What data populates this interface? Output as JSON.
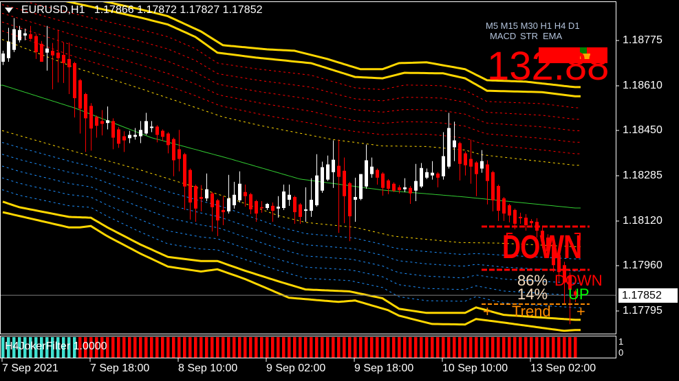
{
  "header": {
    "symbol_timeframe": "EURUSD,H1",
    "ohlc_text": "1.17866 1.17872 1.17827 1.17852"
  },
  "overlay": {
    "timeframes": "M5 M15 M30 H1 H4 D1",
    "indicators": [
      "MACD",
      "STR",
      "EMA"
    ],
    "big_value": "132.88",
    "signal_big": "DOWN",
    "down_pct": "86%",
    "down_label": "DOWN",
    "up_pct": "14%",
    "up_label": "UP",
    "trend_left": "+",
    "trend_label": "Trend",
    "trend_right": "+",
    "colors": {
      "down": "#ff0000",
      "up": "#00ff00",
      "trend": "#ff8c00",
      "pct": "#f5dcc0"
    }
  },
  "price_axis": {
    "ticks": [
      "1.18775",
      "1.18610",
      "1.18450",
      "1.18285",
      "1.18120",
      "1.17960",
      "1.17795"
    ],
    "current_price": "1.17852"
  },
  "time_axis": {
    "labels": [
      "7 Sep 2021",
      "7 Sep 18:00",
      "8 Sep 10:00",
      "9 Sep 02:00",
      "9 Sep 18:00",
      "10 Sep 10:00",
      "13 Sep 02:00"
    ]
  },
  "subwindow": {
    "name_value": "H4JokerFilter 1.0000",
    "axis_max": "1",
    "axis_min": "0",
    "state_runs": [
      {
        "state": "up",
        "bars": 14
      },
      {
        "state": "down",
        "bars": 91
      }
    ],
    "colors": {
      "up": "#40e0d0",
      "down": "#ff0000"
    }
  },
  "chart_data": {
    "type": "candlestick",
    "symbol": "EURUSD",
    "timeframe": "H1",
    "ylim": [
      1.177,
      1.19
    ],
    "colors": {
      "bull": "#ffffff",
      "bear": "#ff0000",
      "ma": "#32cd32",
      "outer_bands": "#ffd700",
      "signal_bands": "#ffd700",
      "upper_levels": "#ff0000",
      "lower_levels": "#1e90ff",
      "current_price_line": "#808080"
    },
    "candles_ohlc": [
      [
        1.18698,
        1.18738,
        1.18686,
        1.18728
      ],
      [
        1.18711,
        1.18821,
        1.18698,
        1.18771
      ],
      [
        1.18741,
        1.18856,
        1.18733,
        1.18816
      ],
      [
        1.18776,
        1.18828,
        1.18768,
        1.18813
      ],
      [
        1.18793,
        1.18818,
        1.18776,
        1.18801
      ],
      [
        1.18798,
        1.18828,
        1.18778,
        1.18781
      ],
      [
        1.18791,
        1.18798,
        1.18708,
        1.18733
      ],
      [
        1.18763,
        1.18773,
        1.18698,
        1.18698
      ],
      [
        1.18731,
        1.18828,
        1.18666,
        1.18746
      ],
      [
        1.18738,
        1.18766,
        1.18598,
        1.18721
      ],
      [
        1.18731,
        1.18811,
        1.18623,
        1.18711
      ],
      [
        1.18723,
        1.18768,
        1.18621,
        1.18693
      ],
      [
        1.18708,
        1.18768,
        1.18581,
        1.18678
      ],
      [
        1.18693,
        1.18698,
        1.18496,
        1.18566
      ],
      [
        1.18631,
        1.18636,
        1.18438,
        1.18528
      ],
      [
        1.18581,
        1.18586,
        1.18371,
        1.18493
      ],
      [
        1.18538,
        1.18548,
        1.18376,
        1.18456
      ],
      [
        1.18498,
        1.18503,
        1.18423,
        1.18466
      ],
      [
        1.18483,
        1.18523,
        1.18431,
        1.18473
      ],
      [
        1.18476,
        1.18536,
        1.18453,
        1.18486
      ],
      [
        1.18483,
        1.18493,
        1.18381,
        1.18423
      ],
      [
        1.18453,
        1.18461,
        1.18386,
        1.18401
      ],
      [
        1.18428,
        1.18446,
        1.18371,
        1.18413
      ],
      [
        1.18421,
        1.18448,
        1.18403,
        1.18433
      ],
      [
        1.18426,
        1.18458,
        1.18416,
        1.18433
      ],
      [
        1.18428,
        1.18483,
        1.18403,
        1.18451
      ],
      [
        1.18438,
        1.18513,
        1.18433,
        1.18483
      ],
      [
        1.18458,
        1.18483,
        1.18443,
        1.18463
      ],
      [
        1.18463,
        1.18468,
        1.18406,
        1.18433
      ],
      [
        1.18448,
        1.18453,
        1.18411,
        1.18426
      ],
      [
        1.18438,
        1.18443,
        1.18366,
        1.18396
      ],
      [
        1.18418,
        1.18423,
        1.18283,
        1.18341
      ],
      [
        1.18381,
        1.18451,
        1.18301,
        1.18346
      ],
      [
        1.18363,
        1.18368,
        1.18161,
        1.18246
      ],
      [
        1.18306,
        1.18311,
        1.18126,
        1.18188
      ],
      [
        1.18248,
        1.18253,
        1.18118,
        1.18166
      ],
      [
        1.18208,
        1.18251,
        1.18156,
        1.18201
      ],
      [
        1.18203,
        1.18293,
        1.18193,
        1.18236
      ],
      [
        1.18221,
        1.18226,
        1.18083,
        1.18171
      ],
      [
        1.18196,
        1.18201,
        1.18066,
        1.18123
      ],
      [
        1.18161,
        1.18211,
        1.18106,
        1.18153
      ],
      [
        1.18156,
        1.18288,
        1.18148,
        1.18203
      ],
      [
        1.18178,
        1.18263,
        1.18166,
        1.18216
      ],
      [
        1.18196,
        1.18301,
        1.18188,
        1.18256
      ],
      [
        1.18226,
        1.18253,
        1.18173,
        1.18211
      ],
      [
        1.18218,
        1.18223,
        1.18146,
        1.18163
      ],
      [
        1.18193,
        1.18198,
        1.18118,
        1.18148
      ],
      [
        1.18171,
        1.18193,
        1.18151,
        1.18168
      ],
      [
        1.18168,
        1.18186,
        1.18161,
        1.18183
      ],
      [
        1.18176,
        1.18188,
        1.18118,
        1.18158
      ],
      [
        1.18166,
        1.18211,
        1.18133,
        1.18173
      ],
      [
        1.18168,
        1.18253,
        1.18161,
        1.18228
      ],
      [
        1.18198,
        1.18253,
        1.18176,
        1.18216
      ],
      [
        1.18208,
        1.18213,
        1.18111,
        1.18153
      ],
      [
        1.18181,
        1.18186,
        1.18111,
        1.18136
      ],
      [
        1.18158,
        1.18243,
        1.18118,
        1.18163
      ],
      [
        1.18158,
        1.18276,
        1.18136,
        1.18198
      ],
      [
        1.18178,
        1.18363,
        1.18173,
        1.18286
      ],
      [
        1.18231,
        1.18336,
        1.18223,
        1.18316
      ],
      [
        1.18271,
        1.18358,
        1.18266,
        1.18326
      ],
      [
        1.18298,
        1.18413,
        1.18241,
        1.18343
      ],
      [
        1.18321,
        1.18416,
        1.18078,
        1.18281
      ],
      [
        1.18303,
        1.18351,
        1.18113,
        1.18211
      ],
      [
        1.18258,
        1.18263,
        1.18048,
        1.18138
      ],
      [
        1.18198,
        1.18278,
        1.18118,
        1.18208
      ],
      [
        1.18201,
        1.18291,
        1.18196,
        1.18291
      ],
      [
        1.18246,
        1.18398,
        1.18238,
        1.18341
      ],
      [
        1.18291,
        1.18351,
        1.18278,
        1.18318
      ],
      [
        1.18306,
        1.18311,
        1.18253,
        1.18278
      ],
      [
        1.18293,
        1.18298,
        1.18213,
        1.18241
      ],
      [
        1.18268,
        1.18273,
        1.18218,
        1.18238
      ],
      [
        1.18256,
        1.18261,
        1.18226,
        1.18231
      ],
      [
        1.18243,
        1.18251,
        1.18221,
        1.18233
      ],
      [
        1.18236,
        1.18276,
        1.18226,
        1.18243
      ],
      [
        1.18241,
        1.18248,
        1.18183,
        1.18221
      ],
      [
        1.18231,
        1.18328,
        1.18193,
        1.18266
      ],
      [
        1.18246,
        1.18331,
        1.18241,
        1.18313
      ],
      [
        1.18278,
        1.18311,
        1.18273,
        1.18298
      ],
      [
        1.18286,
        1.18338,
        1.18271,
        1.18296
      ],
      [
        1.18293,
        1.18298,
        1.18243,
        1.18278
      ],
      [
        1.18283,
        1.18443,
        1.18271,
        1.18356
      ],
      [
        1.18318,
        1.18513,
        1.18311,
        1.18458
      ],
      [
        1.18388,
        1.18481,
        1.18338,
        1.18413
      ],
      [
        1.18403,
        1.18408,
        1.18268,
        1.18328
      ],
      [
        1.18366,
        1.18373,
        1.18286,
        1.18323
      ],
      [
        1.18346,
        1.18416,
        1.18256,
        1.18318
      ],
      [
        1.18333,
        1.18338,
        1.18211,
        1.18291
      ],
      [
        1.18311,
        1.18378,
        1.18296,
        1.18338
      ],
      [
        1.18326,
        1.18341,
        1.18181,
        1.18266
      ],
      [
        1.18298,
        1.18303,
        1.18156,
        1.18196
      ],
      [
        1.18248,
        1.18253,
        1.18121,
        1.18158
      ],
      [
        1.18203,
        1.18208,
        1.18121,
        1.18148
      ],
      [
        1.18178,
        1.18183,
        1.18116,
        1.18141
      ],
      [
        1.18161,
        1.18166,
        1.18091,
        1.18111
      ],
      [
        1.18136,
        1.18151,
        1.18111,
        1.18131
      ],
      [
        1.18133,
        1.18146,
        1.18086,
        1.18106
      ],
      [
        1.18121,
        1.18128,
        1.18098,
        1.18113
      ],
      [
        1.18118,
        1.18131,
        1.18061,
        1.18086
      ],
      [
        1.18086,
        1.18098,
        1.18023,
        1.18048
      ],
      [
        1.18061,
        1.18073,
        1.17998,
        1.18011
      ],
      [
        1.18036,
        1.18048,
        1.17936,
        1.17961
      ],
      [
        1.17998,
        1.18011,
        1.17898,
        1.17936
      ],
      [
        1.17961,
        1.17973,
        1.17823,
        1.17898
      ],
      [
        1.17922,
        1.17935,
        1.17747,
        1.17872
      ],
      [
        1.17866,
        1.17872,
        1.17827,
        1.17852
      ]
    ],
    "indicator_lines": {
      "ma": [
        [
          0,
          1.18613
        ],
        [
          13,
          1.18531
        ],
        [
          27,
          1.18423
        ],
        [
          41,
          1.18348
        ],
        [
          54,
          1.18273
        ],
        [
          69,
          1.18233
        ],
        [
          84,
          1.18208
        ],
        [
          104,
          1.18168
        ]
      ],
      "upper_outer": [
        [
          0,
          1.18998
        ],
        [
          25,
          1.18888
        ],
        [
          30,
          1.18863
        ],
        [
          36,
          1.18808
        ],
        [
          40,
          1.18758
        ],
        [
          48,
          1.18743
        ],
        [
          53,
          1.18738
        ],
        [
          59,
          1.18708
        ],
        [
          65,
          1.18671
        ],
        [
          69,
          1.18671
        ],
        [
          72,
          1.18693
        ],
        [
          77,
          1.18696
        ],
        [
          84,
          1.18671
        ],
        [
          88,
          1.18631
        ],
        [
          95,
          1.18626
        ],
        [
          104,
          1.18606
        ]
      ],
      "upper_inner": [
        [
          0,
          1.18968
        ],
        [
          25,
          1.18858
        ],
        [
          30,
          1.18833
        ],
        [
          35,
          1.18788
        ],
        [
          39,
          1.18731
        ],
        [
          46,
          1.18713
        ],
        [
          56,
          1.18693
        ],
        [
          64,
          1.18643
        ],
        [
          69,
          1.18638
        ],
        [
          73,
          1.18658
        ],
        [
          80,
          1.18656
        ],
        [
          84,
          1.18638
        ],
        [
          88,
          1.18593
        ],
        [
          98,
          1.18588
        ],
        [
          104,
          1.18573
        ]
      ],
      "upper_signal": [
        [
          0,
          1.18778
        ],
        [
          13,
          1.18678
        ],
        [
          25,
          1.18601
        ],
        [
          40,
          1.18498
        ],
        [
          47,
          1.18466
        ],
        [
          60,
          1.18416
        ],
        [
          69,
          1.18393
        ],
        [
          77,
          1.18391
        ],
        [
          84,
          1.18378
        ],
        [
          87,
          1.18361
        ],
        [
          104,
          1.18323
        ]
      ],
      "lower_signal": [
        [
          0,
          1.18448
        ],
        [
          13,
          1.18373
        ],
        [
          25,
          1.18306
        ],
        [
          33,
          1.18256
        ],
        [
          41,
          1.18206
        ],
        [
          50,
          1.18141
        ],
        [
          55,
          1.18116
        ],
        [
          64,
          1.18098
        ],
        [
          71,
          1.18066
        ],
        [
          83,
          1.18043
        ],
        [
          90,
          1.18041
        ],
        [
          104,
          1.18028
        ]
      ],
      "lower_inner": [
        [
          0,
          1.18191
        ],
        [
          3,
          1.18171
        ],
        [
          12,
          1.18136
        ],
        [
          16,
          1.18133
        ],
        [
          19,
          1.18098
        ],
        [
          25,
          1.18036
        ],
        [
          30,
          1.17991
        ],
        [
          36,
          1.17976
        ],
        [
          39,
          1.17976
        ],
        [
          44,
          1.17941
        ],
        [
          50,
          1.17903
        ],
        [
          55,
          1.17873
        ],
        [
          63,
          1.17866
        ],
        [
          69,
          1.17841
        ],
        [
          72,
          1.17803
        ],
        [
          77,
          1.17788
        ],
        [
          84,
          1.17788
        ],
        [
          86,
          1.17808
        ],
        [
          91,
          1.17781
        ],
        [
          104,
          1.17763
        ]
      ],
      "lower_outer": [
        [
          0,
          1.18153
        ],
        [
          12,
          1.18098
        ],
        [
          14,
          1.18098
        ],
        [
          16,
          1.18103
        ],
        [
          19,
          1.18066
        ],
        [
          25,
          1.18003
        ],
        [
          30,
          1.17956
        ],
        [
          36,
          1.17938
        ],
        [
          39,
          1.17946
        ],
        [
          44,
          1.17911
        ],
        [
          52,
          1.17843
        ],
        [
          61,
          1.17828
        ],
        [
          64,
          1.17833
        ],
        [
          70,
          1.17798
        ],
        [
          72,
          1.17778
        ],
        [
          78,
          1.17748
        ],
        [
          84,
          1.17746
        ],
        [
          86,
          1.17766
        ],
        [
          91,
          1.17753
        ],
        [
          102,
          1.17723
        ],
        [
          104,
          1.17726
        ]
      ]
    },
    "level_lines_between_signal_and_inner": 5,
    "current_price": 1.17852
  }
}
